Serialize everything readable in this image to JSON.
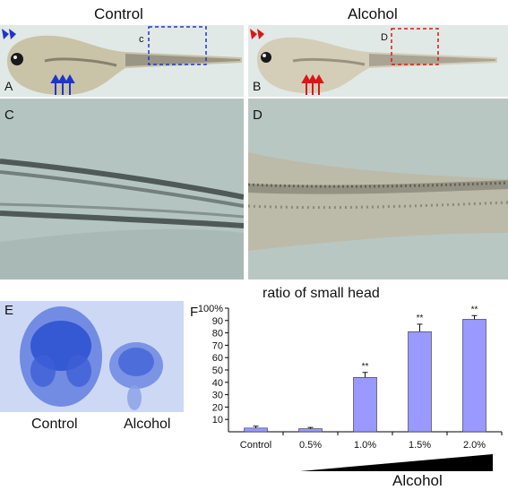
{
  "figure": {
    "header_control": "Control",
    "header_alcohol": "Alcohol",
    "labels": {
      "a": "A",
      "b": "B",
      "c": "C",
      "d": "D",
      "e": "E",
      "f": "F",
      "box_c": "c",
      "box_d": "D"
    },
    "panel_e": {
      "left": "Control",
      "right": "Alcohol"
    },
    "colors": {
      "control_marker": "#1f35c8",
      "alcohol_marker": "#d81818",
      "bar_fill": "#9999ff",
      "background_tint": "#d9e4e2"
    }
  },
  "chart_data": {
    "type": "bar",
    "title": "ratio of small head",
    "categories": [
      "Control",
      "0.5%",
      "1.0%",
      "1.5%",
      "2.0%"
    ],
    "values": [
      3,
      2.5,
      44,
      81,
      91
    ],
    "errors": [
      1.5,
      1,
      4,
      6,
      3
    ],
    "significance": [
      "",
      "",
      "**",
      "**",
      "**"
    ],
    "ylim": [
      0,
      100
    ],
    "y_ticks": [
      "10",
      "20",
      "30",
      "40",
      "50",
      "60",
      "70",
      "80",
      "90",
      "100%"
    ],
    "y_tick_values": [
      10,
      20,
      30,
      40,
      50,
      60,
      70,
      80,
      90,
      100
    ],
    "xlabel": "Alcohol",
    "grid": false
  }
}
